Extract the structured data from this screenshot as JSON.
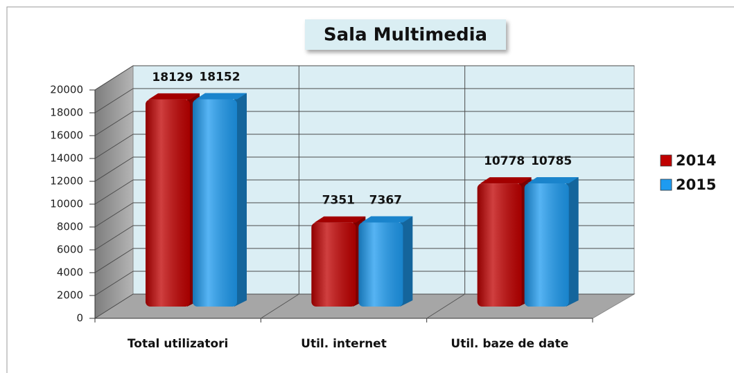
{
  "chart_data": {
    "type": "bar3d",
    "title": "Sala Multimedia",
    "categories": [
      "Total utilizatori",
      "Util. internet",
      "Util. baze de date"
    ],
    "series": [
      {
        "name": "2014",
        "color": "#c00000",
        "values": [
          18129,
          7351,
          10778
        ]
      },
      {
        "name": "2015",
        "color": "#1e9bf0",
        "values": [
          18152,
          7367,
          10785
        ]
      }
    ],
    "ylim": [
      0,
      20000
    ],
    "yticks": [
      0,
      2000,
      4000,
      6000,
      8000,
      10000,
      12000,
      14000,
      16000,
      18000,
      20000
    ],
    "grid": true,
    "legend": "right"
  }
}
